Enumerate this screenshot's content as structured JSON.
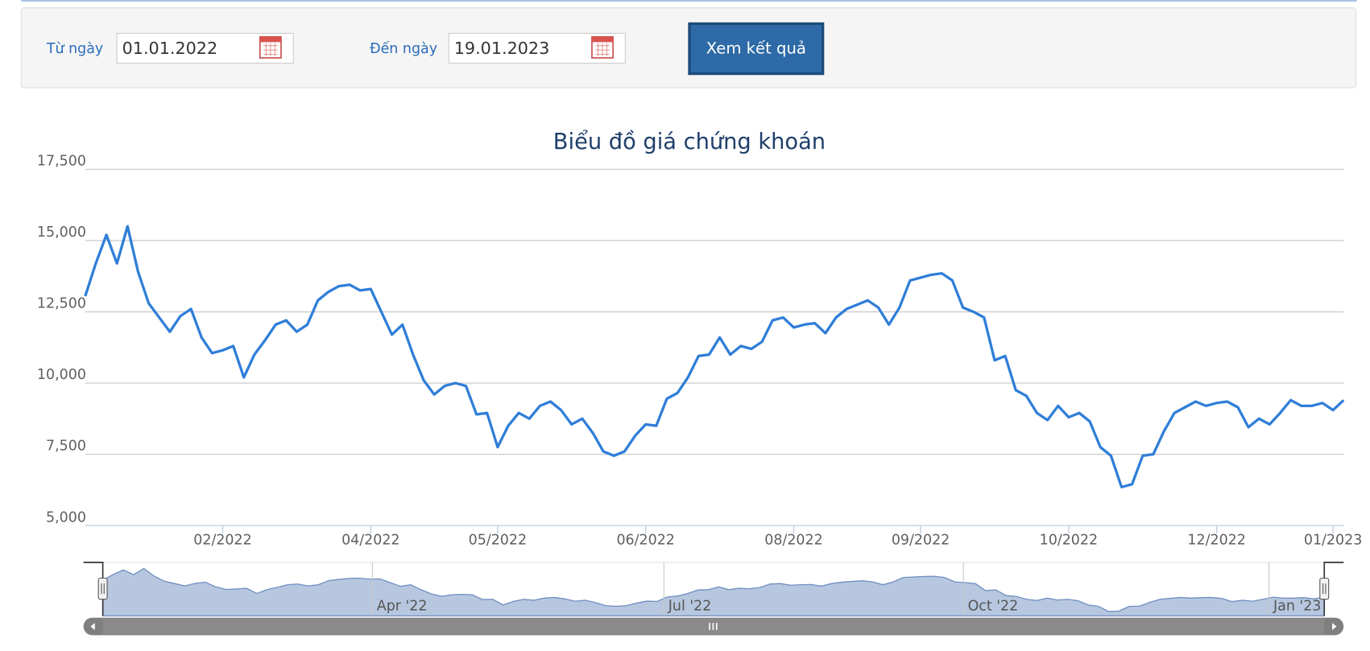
{
  "form": {
    "from_label": "Từ ngày",
    "from_value": "01.01.2022",
    "to_label": "Đến ngày",
    "to_value": "19.01.2023",
    "button": "Xem kết quả"
  },
  "chart_data": {
    "type": "line",
    "title": "Biểu đồ giá chứng khoán",
    "categories": [
      null,
      null,
      null,
      null,
      null,
      null,
      null,
      null,
      null,
      null,
      null,
      null,
      null,
      "02/2022",
      null,
      null,
      null,
      null,
      null,
      null,
      null,
      null,
      null,
      null,
      null,
      null,
      null,
      "04/2022",
      null,
      null,
      null,
      null,
      null,
      null,
      null,
      null,
      null,
      null,
      null,
      "05/2022",
      null,
      null,
      null,
      null,
      null,
      null,
      null,
      null,
      null,
      null,
      null,
      null,
      null,
      "06/2022",
      null,
      null,
      null,
      null,
      null,
      null,
      null,
      null,
      null,
      null,
      null,
      null,
      null,
      "08/2022",
      null,
      null,
      null,
      null,
      null,
      null,
      null,
      null,
      null,
      null,
      null,
      "09/2022",
      null,
      null,
      null,
      null,
      null,
      null,
      null,
      null,
      null,
      null,
      null,
      null,
      null,
      "10/2022",
      null,
      null,
      null,
      null,
      null,
      null,
      null,
      null,
      null,
      null,
      null,
      null,
      null,
      "12/2022",
      null,
      null,
      null,
      null,
      null,
      null,
      null,
      null,
      null,
      null,
      "01/2023",
      null
    ],
    "series": [
      {
        "color": "#2f7ed8",
        "values": [
          13050,
          14200,
          15200,
          14200,
          15500,
          13900,
          12800,
          12300,
          11800,
          12350,
          12600,
          11600,
          11050,
          11150,
          11300,
          10200,
          11000,
          11500,
          12050,
          12200,
          11800,
          12050,
          12900,
          13200,
          13400,
          13450,
          13250,
          13300,
          12500,
          11700,
          12050,
          11000,
          10100,
          9600,
          9900,
          10000,
          9900,
          8900,
          8950,
          7750,
          8500,
          8950,
          8750,
          9200,
          9350,
          9050,
          8550,
          8750,
          8250,
          7600,
          7450,
          7600,
          8150,
          8550,
          8500,
          9450,
          9650,
          10200,
          10950,
          11000,
          11600,
          11000,
          11300,
          11200,
          11450,
          12200,
          12300,
          11950,
          12050,
          12100,
          11750,
          12300,
          12600,
          12750,
          12900,
          12650,
          12050,
          12650,
          13600,
          13700,
          13800,
          13850,
          13600,
          12650,
          12500,
          12300,
          10800,
          10950,
          9750,
          9550,
          8950,
          8700,
          9200,
          8800,
          8950,
          8650,
          7750,
          7450,
          6350,
          6450,
          7450,
          7500,
          8300,
          8950,
          9150,
          9350,
          9200,
          9300,
          9350,
          9150,
          8450,
          8750,
          8550,
          8950,
          9400,
          9200,
          9200,
          9300,
          9050,
          9400
        ]
      }
    ],
    "ylim": [
      5000,
      17500
    ],
    "yticks": [
      {
        "value": 5000,
        "label": "5,000"
      },
      {
        "value": 7500,
        "label": "7,500"
      },
      {
        "value": 10000,
        "label": "10,000"
      },
      {
        "value": 12500,
        "label": "12,500"
      },
      {
        "value": 15000,
        "label": "15,000"
      },
      {
        "value": 17500,
        "label": "17,500"
      }
    ],
    "grid": true,
    "navigator_labels": [
      "Apr '22",
      "Jul '22",
      "Oct '22",
      "Jan '23"
    ]
  }
}
